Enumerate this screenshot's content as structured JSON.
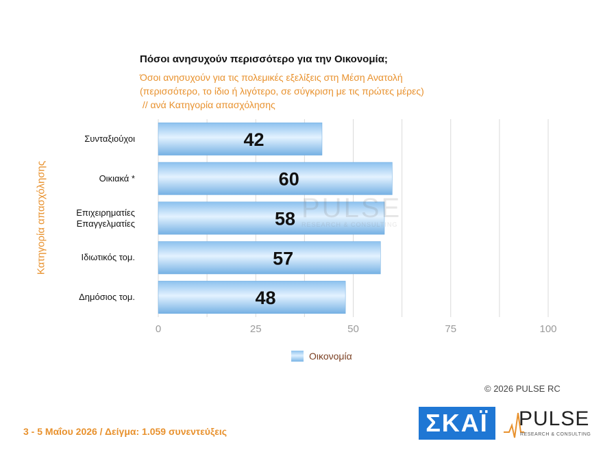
{
  "header": {
    "title": "Πόσοι ανησυχούν περισσότερο για την Οικονομία;",
    "subtitle": "Όσοι ανησυχούν για τις πολεμικές εξελίξεις στη Μέση Ανατολή\n(περισσότερο, το ίδιο ή λιγότερο, σε σύγκριση με τις πρώτες μέρες)\n // ανά Κατηγορία απασχόλησης"
  },
  "chart_data": {
    "type": "bar",
    "orientation": "horizontal",
    "ylabel": "Κατηγορία απασχόλησης",
    "categories": [
      "Συνταξιούχοι",
      "Οικιακά *",
      "Επιχειρηματίες\nΕπαγγελματίες",
      "Ιδιωτικός τομ.",
      "Δημόσιος τομ."
    ],
    "series": [
      {
        "name": "Οικονομία",
        "values": [
          42,
          60,
          58,
          57,
          48
        ]
      }
    ],
    "xlim": [
      0,
      100
    ],
    "xticks": [
      "0",
      "25",
      "50",
      "75",
      "100"
    ],
    "grid": true,
    "legend_position": "bottom-center",
    "colors": {
      "bar": "#9ccbf0",
      "bar_edge": "#6aa9df",
      "grid": "#d9d9d9",
      "tick": "#9a9a9a",
      "accent": "#e8912d"
    }
  },
  "legend": {
    "label": "Οικονομία"
  },
  "watermark": {
    "word": "PULSE",
    "tag": "RESEARCH & CONSULTING"
  },
  "copyright": "©  2026  PULSE RC",
  "footer": "3 - 5  Μαΐου 2026  /  Δείγμα:  1.059 συνεντεύξεις",
  "logos": {
    "skai": "ΣΚΑΪ",
    "pulse_word": "PULSE",
    "pulse_tag": "RESEARCH & CONSULTING"
  }
}
